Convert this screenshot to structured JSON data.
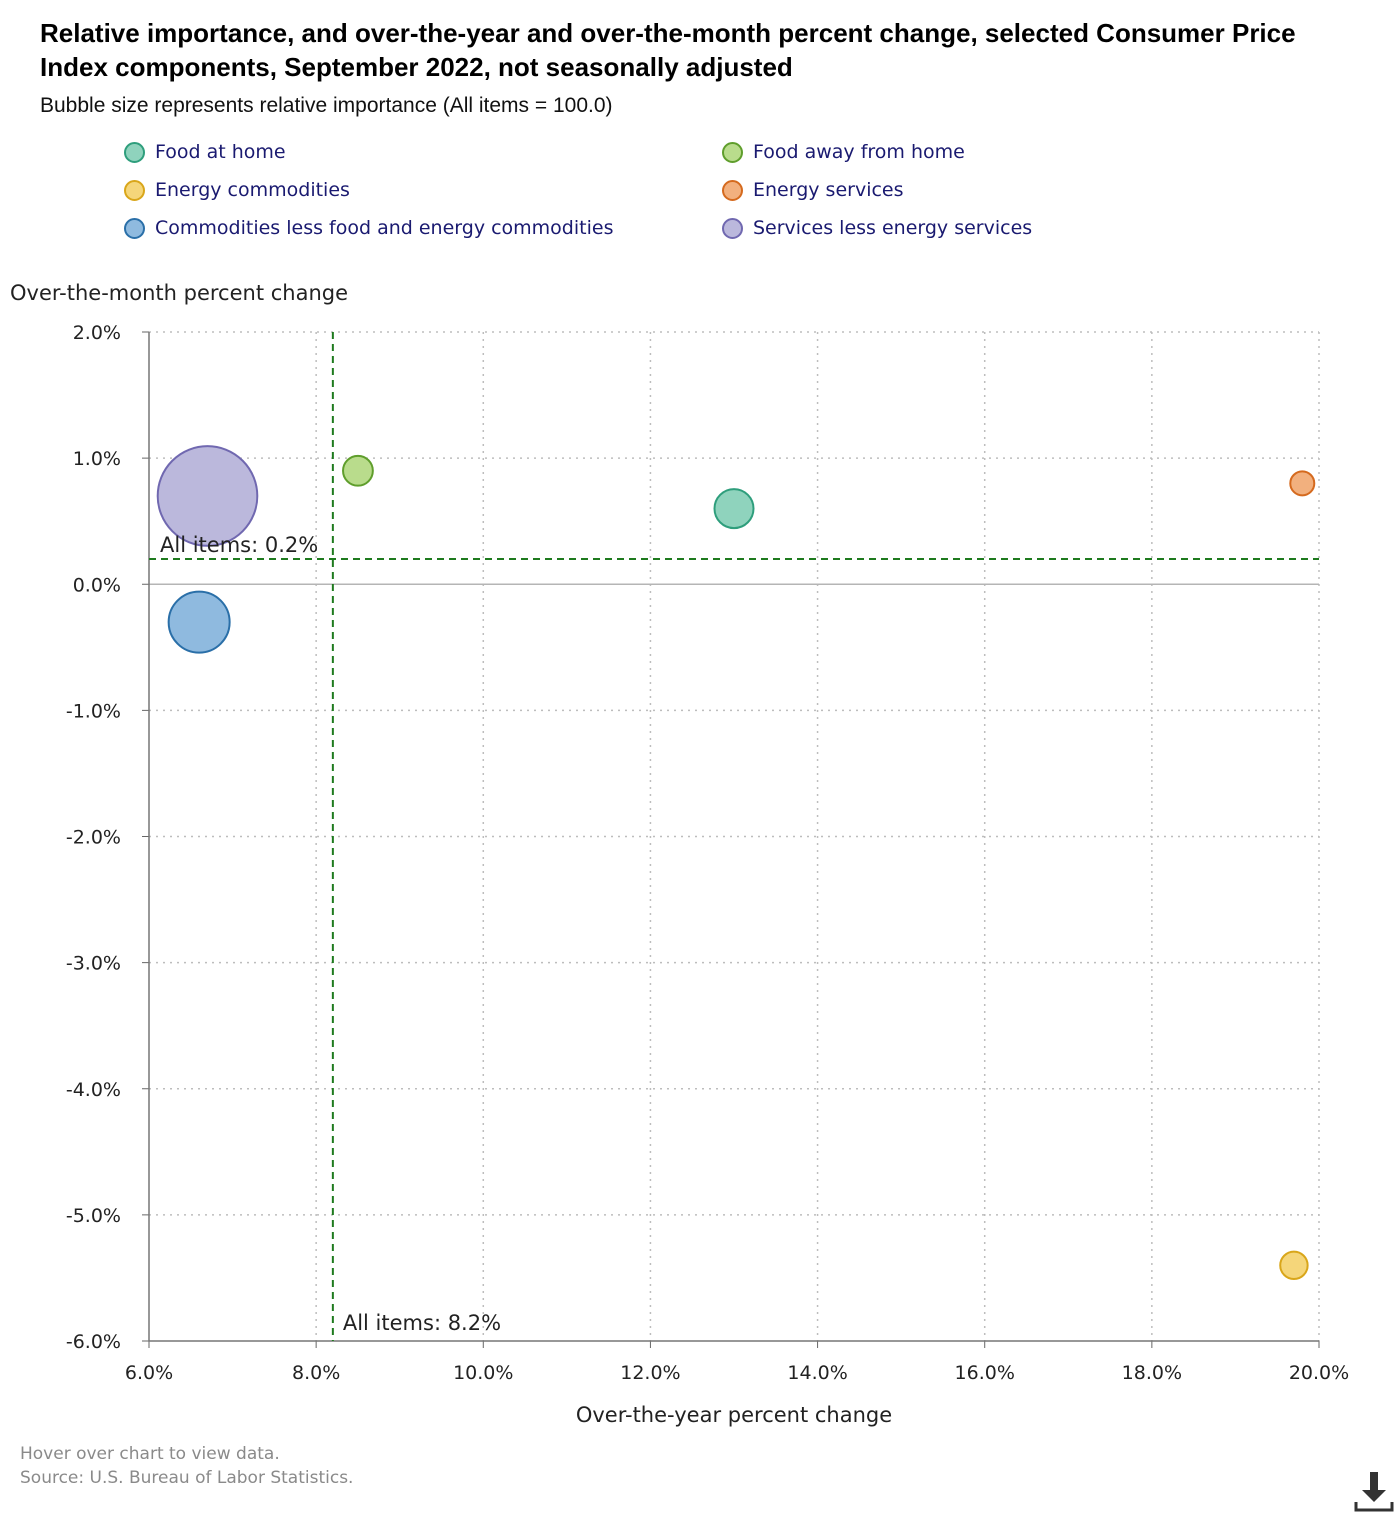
{
  "title": "Relative importance, and over-the-year and over-the-month percent change, selected Consumer Price Index components, September 2022, not seasonally adjusted",
  "subtitle": "Bubble size represents relative importance (All items = 100.0)",
  "footer": {
    "hover_note": "Hover over chart to view data.",
    "source": "Source: U.S. Bureau of Labor Statistics."
  },
  "download_icon": "download-icon",
  "chart_data": {
    "type": "scatter",
    "bubble": true,
    "title": "Relative importance, and over-the-year and over-the-month percent change, selected Consumer Price Index components, September 2022, not seasonally adjusted",
    "subtitle": "Bubble size represents relative importance (All items = 100.0)",
    "xlabel": "Over-the-year percent change",
    "ylabel": "Over-the-month percent change",
    "xlim": [
      6.0,
      20.0
    ],
    "ylim": [
      -6.0,
      2.0
    ],
    "xticks": [
      6,
      8,
      10,
      12,
      14,
      16,
      18,
      20
    ],
    "yticks": [
      2,
      1,
      0,
      -1,
      -2,
      -3,
      -4,
      -5,
      -6
    ],
    "xtick_labels": [
      "6.0%",
      "8.0%",
      "10.0%",
      "12.0%",
      "14.0%",
      "16.0%",
      "18.0%",
      "20.0%"
    ],
    "ytick_labels": [
      "2.0%",
      "1.0%",
      "0.0%",
      "-1.0%",
      "-2.0%",
      "-3.0%",
      "-4.0%",
      "-5.0%",
      "-6.0%"
    ],
    "grid": true,
    "legend_position": "top",
    "series": [
      {
        "name": "Food at home",
        "x": 13.0,
        "y": 0.6,
        "size": 8.7,
        "fill": "#8fd3bd",
        "stroke": "#2e9e7c"
      },
      {
        "name": "Food away from home",
        "x": 8.5,
        "y": 0.9,
        "size": 5.1,
        "fill": "#b9dc8c",
        "stroke": "#5f9e2c"
      },
      {
        "name": "Energy commodities",
        "x": 19.7,
        "y": -5.4,
        "size": 4.3,
        "fill": "#f5d67a",
        "stroke": "#d9a61a"
      },
      {
        "name": "Energy services",
        "x": 19.8,
        "y": 0.8,
        "size": 3.3,
        "fill": "#f2b07e",
        "stroke": "#d56a1e"
      },
      {
        "name": "Commodities less food and energy commodities",
        "x": 6.6,
        "y": -0.3,
        "size": 21.4,
        "fill": "#8fbadf",
        "stroke": "#2a6fa8"
      },
      {
        "name": "Services less energy services",
        "x": 6.7,
        "y": 0.7,
        "size": 57.0,
        "fill": "#bbb8dc",
        "stroke": "#7068b0"
      }
    ],
    "reference_lines": [
      {
        "axis": "y",
        "value": 0.2,
        "label": "All items: 0.2%",
        "color": "#1e7a1e"
      },
      {
        "axis": "x",
        "value": 8.2,
        "label": "All items: 8.2%",
        "color": "#1e7a1e"
      }
    ]
  }
}
